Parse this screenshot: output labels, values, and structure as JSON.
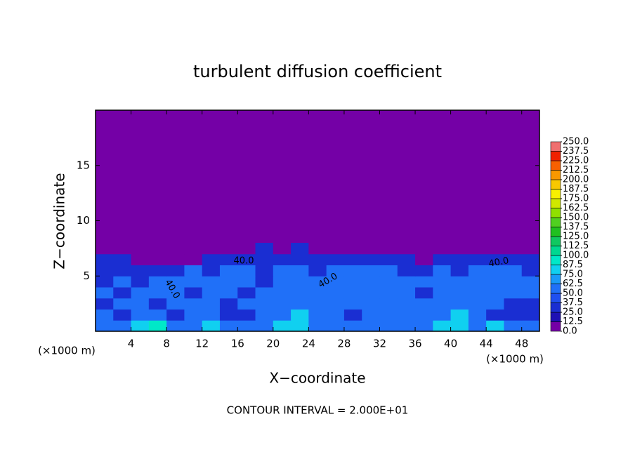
{
  "chart_data": {
    "type": "heatmap",
    "title": "turbulent diffusion coefficient",
    "xlabel": "X−coordinate",
    "ylabel": "Z−coordinate",
    "x_unit": "(×1000 m)",
    "footnote": "CONTOUR INTERVAL = 2.000E+01",
    "xlim": [
      0,
      50
    ],
    "ylim": [
      0,
      20
    ],
    "xticks": [
      4,
      8,
      12,
      16,
      20,
      24,
      28,
      32,
      36,
      40,
      44,
      48
    ],
    "yticks": [
      5,
      10,
      15
    ],
    "x": [
      1,
      3,
      5,
      7,
      9,
      11,
      13,
      15,
      17,
      19,
      21,
      23,
      25,
      27,
      29,
      31,
      33,
      35,
      37,
      39,
      41,
      43,
      45,
      47,
      49
    ],
    "z": [
      0.5,
      1.5,
      2.5,
      3.5,
      4.5,
      5.5,
      6.5,
      7.5
    ],
    "values": [
      [
        50,
        62,
        75,
        90,
        62,
        50,
        75,
        62,
        50,
        62,
        75,
        87,
        62,
        50,
        62,
        62,
        62,
        62,
        62,
        75,
        87,
        62,
        75,
        62,
        50
      ],
      [
        50,
        37,
        62,
        50,
        37,
        50,
        62,
        37,
        37,
        62,
        50,
        75,
        50,
        50,
        37,
        50,
        62,
        50,
        62,
        62,
        75,
        50,
        37,
        37,
        37
      ],
      [
        37,
        50,
        62,
        37,
        50,
        62,
        50,
        37,
        50,
        62,
        50,
        62,
        62,
        50,
        50,
        62,
        50,
        62,
        50,
        50,
        62,
        62,
        50,
        37,
        37
      ],
      [
        50,
        37,
        50,
        62,
        50,
        37,
        62,
        50,
        37,
        50,
        62,
        62,
        50,
        62,
        62,
        50,
        62,
        50,
        37,
        50,
        62,
        50,
        62,
        50,
        50
      ],
      [
        37,
        50,
        37,
        50,
        62,
        50,
        50,
        62,
        50,
        37,
        62,
        50,
        62,
        62,
        50,
        62,
        50,
        62,
        50,
        62,
        50,
        62,
        50,
        62,
        50
      ],
      [
        37,
        37,
        37,
        25,
        37,
        50,
        37,
        50,
        62,
        37,
        50,
        50,
        37,
        50,
        50,
        50,
        50,
        37,
        37,
        50,
        37,
        50,
        50,
        62,
        37
      ],
      [
        25,
        25,
        12,
        12,
        12,
        12,
        25,
        37,
        37,
        25,
        37,
        37,
        25,
        25,
        25,
        25,
        25,
        25,
        12,
        25,
        25,
        37,
        25,
        25,
        25
      ],
      [
        12,
        0,
        0,
        0,
        0,
        0,
        0,
        0,
        12,
        25,
        12,
        25,
        12,
        0,
        0,
        0,
        0,
        0,
        0,
        0,
        12,
        12,
        12,
        12,
        12
      ]
    ],
    "colorbar": {
      "ticks": [
        {
          "value": 0,
          "label": "0.0"
        },
        12.5,
        {
          "value": 25,
          "label": "25.0"
        },
        37.5,
        {
          "value": 50,
          "label": "50.0"
        },
        62.5,
        {
          "value": 75,
          "label": "75.0"
        },
        87.5,
        {
          "value": 100,
          "label": "100.0"
        },
        112.5,
        {
          "value": 125,
          "label": "125.0"
        },
        137.5,
        {
          "value": 150,
          "label": "150.0"
        },
        162.5,
        {
          "value": 175,
          "label": "175.0"
        },
        187.5,
        {
          "value": 200,
          "label": "200.0"
        },
        212.5,
        {
          "value": 225,
          "label": "225.0"
        },
        237.5,
        {
          "value": 250,
          "label": "250.0"
        }
      ],
      "colors": [
        "#7400a6",
        "#1e10b4",
        "#1a2ed2",
        "#1f4ff0",
        "#2070f8",
        "#1a9af8",
        "#10d0f0",
        "#00e8c8",
        "#00d890",
        "#10c860",
        "#20c020",
        "#50d020",
        "#90e000",
        "#d0e800",
        "#f8f000",
        "#f8c800",
        "#f89800",
        "#f86000",
        "#f02000",
        "#f07070"
      ]
    },
    "contour_labels": [
      {
        "value": 40,
        "label": "40.0"
      },
      {
        "value": 40,
        "label": "40.0"
      },
      {
        "value": 40,
        "label": "40.0"
      },
      {
        "value": 40,
        "label": "40.0"
      }
    ]
  }
}
